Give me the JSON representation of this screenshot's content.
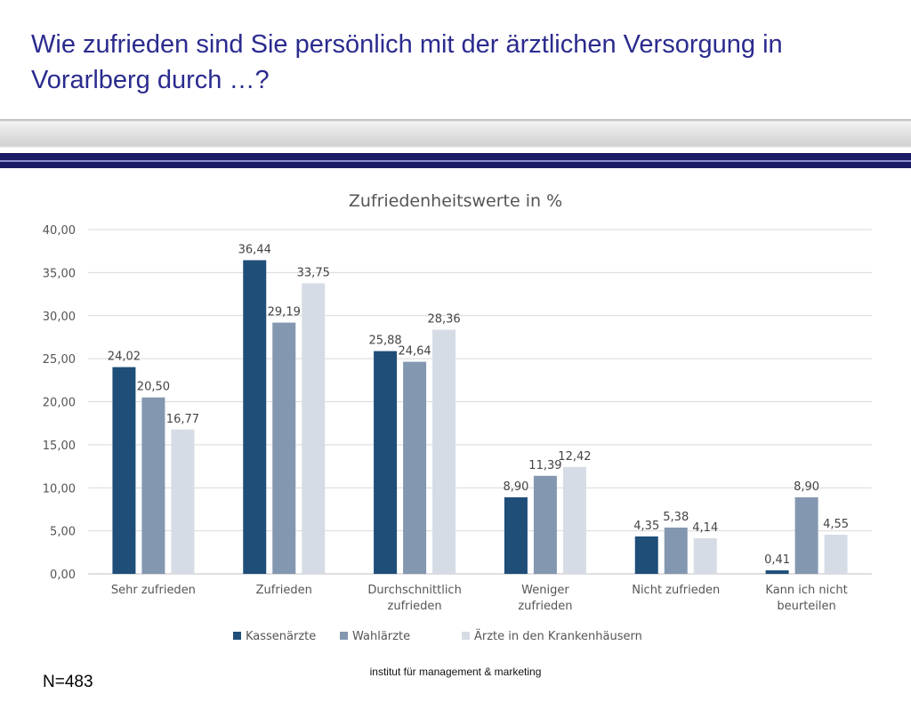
{
  "slide": {
    "title": "Wie zufrieden sind Sie persönlich mit der ärztlichen Versorgung in Vorarlberg durch …?",
    "sample_size": "N=483",
    "footer": "institut für management & marketing"
  },
  "chart_data": {
    "type": "bar",
    "title": "Zufriedenheitswerte in %",
    "categories": [
      [
        "Sehr zufrieden"
      ],
      [
        "Zufrieden"
      ],
      [
        "Durchschnittlich",
        "zufrieden"
      ],
      [
        "Weniger",
        "zufrieden"
      ],
      [
        "Nicht zufrieden"
      ],
      [
        "Kann ich nicht",
        "beurteilen"
      ]
    ],
    "series": [
      {
        "name": "Kassenärzte",
        "color": "#1f4e79",
        "values": [
          24.02,
          36.44,
          25.88,
          8.9,
          4.35,
          0.41
        ],
        "labels": [
          "24,02",
          "36,44",
          "25,88",
          "8,90",
          "4,35",
          "0,41"
        ]
      },
      {
        "name": "Wahlärzte",
        "color": "#8497b0",
        "values": [
          20.5,
          29.19,
          24.64,
          11.39,
          5.38,
          8.9
        ],
        "labels": [
          "20,50",
          "29,19",
          "24,64",
          "11,39",
          "5,38",
          "8,90"
        ]
      },
      {
        "name": "Ärzte in den Krankenhäusern",
        "color": "#d6dce5",
        "values": [
          16.77,
          33.75,
          28.36,
          12.42,
          4.14,
          4.55
        ],
        "labels": [
          "16,77",
          "33,75",
          "28,36",
          "12,42",
          "4,14",
          "4,55"
        ]
      }
    ],
    "ylim": [
      0,
      40
    ],
    "yticks": [
      "0,00",
      "5,00",
      "10,00",
      "15,00",
      "20,00",
      "25,00",
      "30,00",
      "35,00",
      "40,00"
    ],
    "grid": true,
    "legend": "bottom"
  }
}
